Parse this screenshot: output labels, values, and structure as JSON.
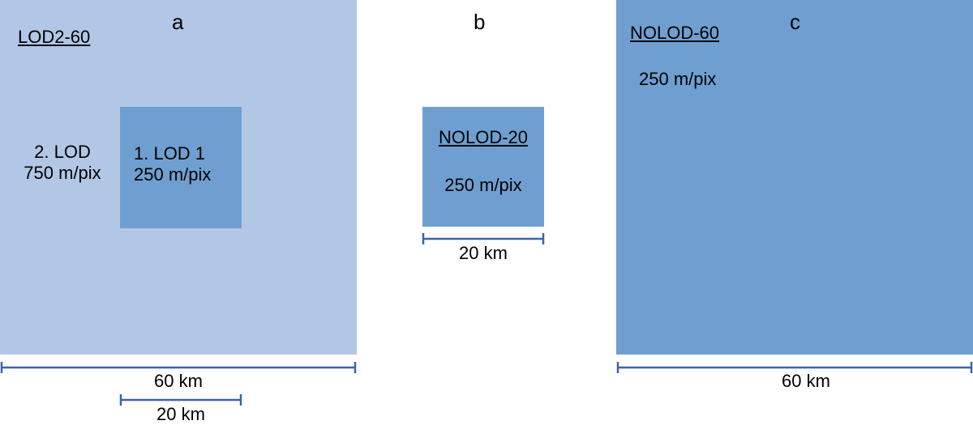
{
  "colors": {
    "light_blue": "#b2c7e6",
    "mid_blue": "#6f9fd0",
    "scale_bar": "#3d64a6"
  },
  "panel_a": {
    "letter": "a",
    "title": "LOD2-60",
    "outer_label_line1": "2. LOD",
    "outer_label_line2": "750 m/pix",
    "inner_label_line1": "1. LOD 1",
    "inner_label_line2": "250 m/pix",
    "scale_outer": "60 km",
    "scale_inner": "20 km"
  },
  "panel_b": {
    "letter": "b",
    "title": "NOLOD-20",
    "resolution": "250 m/pix",
    "scale": "20 km"
  },
  "panel_c": {
    "letter": "c",
    "title": "NOLOD-60",
    "resolution": "250 m/pix",
    "scale": "60 km"
  }
}
